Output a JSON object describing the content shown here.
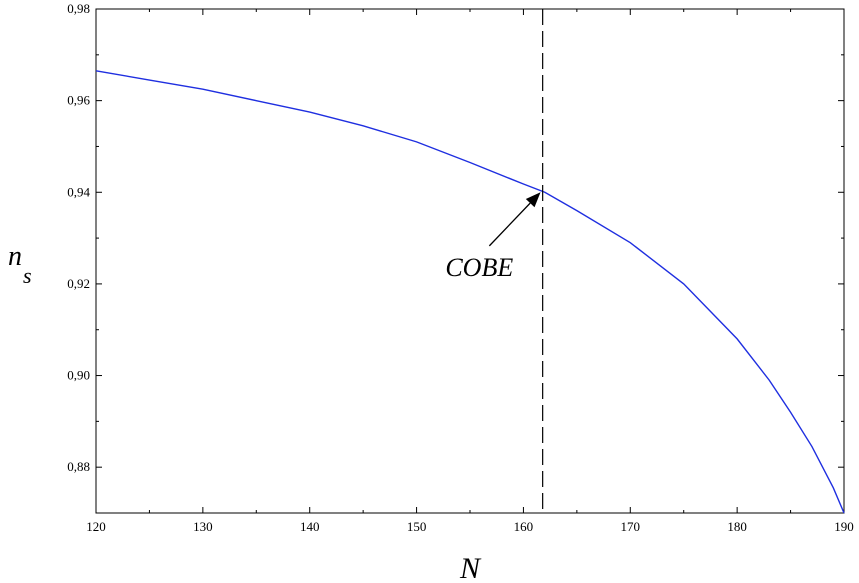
{
  "chart_data": {
    "type": "line",
    "title": "",
    "xlabel": "N",
    "ylabel": "n",
    "ylabel_subscript": "s",
    "xlim": [
      120,
      190
    ],
    "ylim": [
      0.87,
      0.98
    ],
    "x_ticks": [
      120,
      130,
      140,
      150,
      160,
      170,
      180,
      190
    ],
    "x_tick_labels": [
      "120",
      "130",
      "140",
      "150",
      "160",
      "170",
      "180",
      "190"
    ],
    "y_ticks": [
      0.88,
      0.9,
      0.92,
      0.94,
      0.96,
      0.98
    ],
    "y_tick_labels": [
      "0,88",
      "0,90",
      "0,92",
      "0,94",
      "0,96",
      "0,98"
    ],
    "grid": false,
    "line_color": "#1f2fe0",
    "series": [
      {
        "x": [
          120,
          125,
          130,
          135,
          140,
          145,
          150,
          155,
          160,
          162,
          165,
          170,
          175,
          180,
          183,
          185,
          187,
          189,
          190
        ],
        "y": [
          0.9665,
          0.9645,
          0.9625,
          0.96,
          0.9575,
          0.9545,
          0.951,
          0.9465,
          0.9418,
          0.94,
          0.936,
          0.929,
          0.92,
          0.908,
          0.899,
          0.892,
          0.8845,
          0.8755,
          0.87
        ]
      }
    ],
    "reference_line": {
      "x": 161.8,
      "style": "dashed"
    },
    "annotation": {
      "text": "COBE",
      "arrow_to": [
        161.6,
        0.94
      ],
      "text_at": [
        155.5,
        0.9235
      ]
    }
  }
}
